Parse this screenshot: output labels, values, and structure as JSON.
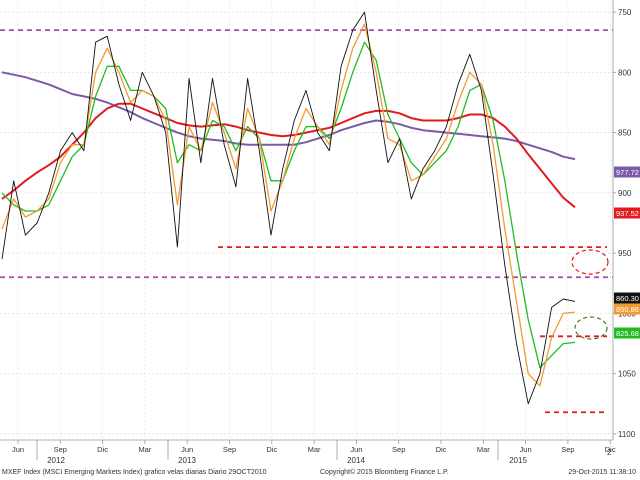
{
  "chart_data": {
    "type": "line",
    "title": "",
    "xlabel": "",
    "ylabel": "",
    "ylim": [
      745,
      1110
    ],
    "y_ticks": [
      750,
      800,
      850,
      900,
      950,
      1000,
      1050,
      1100
    ],
    "x_tick_labels": [
      "Jun",
      "Sep",
      "Dic",
      "Mar",
      "Jun",
      "Sep",
      "Dic",
      "Mar",
      "Jun",
      "Sep",
      "Dic",
      "Mar",
      "Jun",
      "Sep",
      "Dic"
    ],
    "year_labels": [
      "2012",
      "2013",
      "2014",
      "2015"
    ],
    "last_values": [
      {
        "label": "977.72",
        "color": "#7b5aa6"
      },
      {
        "label": "937.52",
        "color": "#e31a1c"
      },
      {
        "label": "860.30",
        "color": "#111111"
      },
      {
        "label": "850.86",
        "color": "#f29b30"
      },
      {
        "label": "825.68",
        "color": "#22bb22"
      }
    ],
    "reference_lines": [
      {
        "value": 1085,
        "style": "dashed",
        "color": "#a64ca6"
      },
      {
        "value": 880,
        "style": "dashed",
        "color": "#a64ca6"
      },
      {
        "value": 905,
        "style": "dashed",
        "color": "#e31a1c"
      },
      {
        "value": 831,
        "style": "dashed",
        "color": "#e31a1c"
      },
      {
        "value": 768,
        "style": "dashed",
        "color": "#e31a1c"
      }
    ],
    "grid": true,
    "series": [
      {
        "key": "price",
        "values": [
          895,
          960,
          915,
          925,
          950,
          985,
          1000,
          985,
          1075,
          1080,
          1040,
          1010,
          1050,
          1030,
          1000,
          905,
          1045,
          975,
          1045,
          990,
          955,
          1045,
          985,
          915,
          970,
          1010,
          1035,
          1000,
          985,
          1055,
          1085,
          1100,
          1035,
          975,
          995,
          945,
          970,
          985,
          1005,
          1040,
          1065,
          1035,
          965,
          890,
          825,
          775,
          800,
          855,
          862,
          860
        ],
        "color": "#111111"
      },
      {
        "key": "sma_fast",
        "values": [
          920,
          945,
          930,
          935,
          945,
          975,
          990,
          990,
          1050,
          1070,
          1050,
          1025,
          1035,
          1030,
          1010,
          940,
          1005,
          985,
          1025,
          1000,
          970,
          1020,
          995,
          935,
          960,
          995,
          1020,
          1005,
          990,
          1035,
          1070,
          1090,
          1050,
          995,
          990,
          960,
          965,
          980,
          995,
          1025,
          1050,
          1040,
          990,
          920,
          860,
          800,
          790,
          830,
          850,
          851
        ],
        "color": "#f29b30"
      },
      {
        "key": "sma_mid",
        "values": [
          950,
          940,
          935,
          935,
          940,
          960,
          980,
          990,
          1030,
          1055,
          1055,
          1035,
          1035,
          1030,
          1020,
          975,
          990,
          985,
          1010,
          1005,
          985,
          1005,
          995,
          960,
          960,
          985,
          1005,
          1005,
          995,
          1020,
          1050,
          1075,
          1060,
          1015,
          995,
          975,
          965,
          975,
          985,
          1005,
          1035,
          1040,
          1010,
          960,
          900,
          845,
          805,
          815,
          825,
          826
        ],
        "color": "#22bb22"
      },
      {
        "key": "sma_200",
        "values": [
          945,
          952,
          960,
          967,
          973,
          980,
          990,
          1000,
          1012,
          1020,
          1024,
          1024,
          1020,
          1016,
          1012,
          1008,
          1006,
          1005,
          1006,
          1007,
          1005,
          1002,
          1000,
          998,
          997,
          998,
          1000,
          1002,
          1004,
          1008,
          1012,
          1016,
          1018,
          1018,
          1016,
          1012,
          1010,
          1010,
          1010,
          1012,
          1015,
          1015,
          1012,
          1005,
          995,
          982,
          970,
          958,
          946,
          938
        ],
        "color": "#e31a1c"
      },
      {
        "key": "sma_long",
        "values": [
          1050,
          1048,
          1046,
          1043,
          1040,
          1036,
          1032,
          1030,
          1028,
          1025,
          1021,
          1017,
          1012,
          1008,
          1004,
          1000,
          997,
          995,
          994,
          993,
          991,
          990,
          990,
          990,
          990,
          990,
          992,
          995,
          998,
          1002,
          1005,
          1008,
          1010,
          1009,
          1007,
          1004,
          1002,
          1001,
          1000,
          999,
          998,
          997,
          996,
          995,
          993,
          990,
          987,
          984,
          980,
          978
        ],
        "color": "#7b5aa6"
      }
    ]
  },
  "axis": {
    "y_labels": [
      "1100",
      "1050",
      "1000",
      "950",
      "900",
      "850",
      "800",
      "750"
    ]
  },
  "footer": {
    "left": "MXEF Index (MSCI Emerging Markets Index) grafico velas diarias  Diario 29OCT2010",
    "center": "Copyright© 2015 Bloomberg Finance L.P.",
    "right": "29-Oct-2015 11:38:10"
  },
  "corner_number": "2"
}
